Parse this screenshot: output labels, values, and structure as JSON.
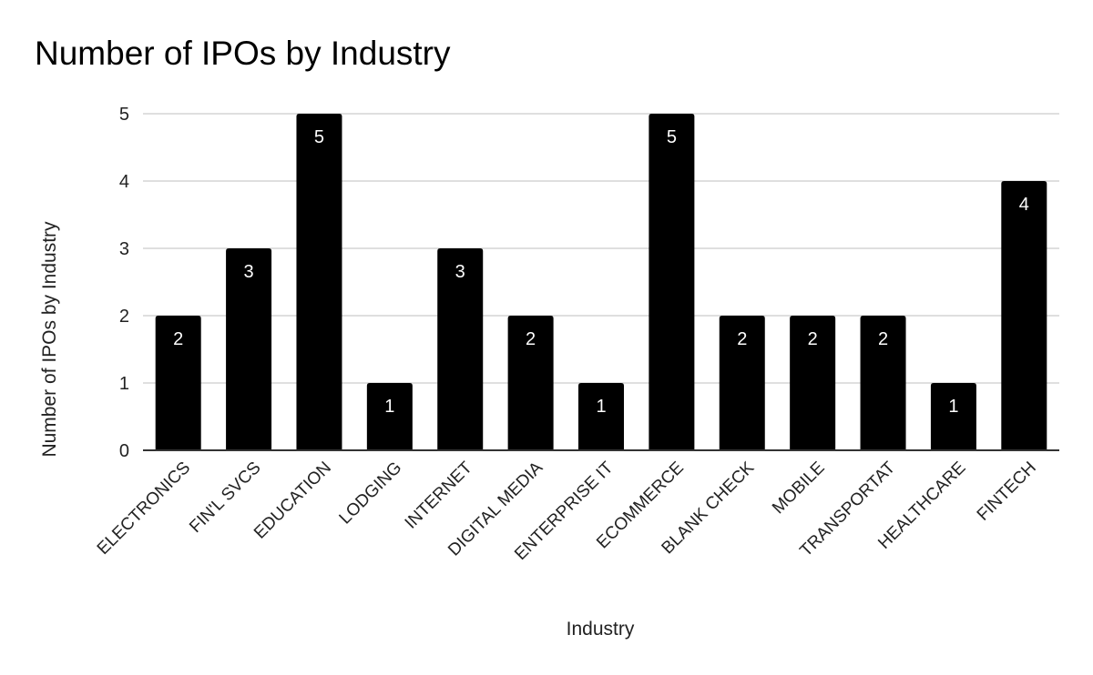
{
  "chart_data": {
    "type": "bar",
    "title": "Number of IPOs by Industry",
    "xlabel": "Industry",
    "ylabel": "Number of IPOs by Industry",
    "categories": [
      "ELECTRONICS",
      "FIN'L SVCS",
      "EDUCATION",
      "LODGING",
      "INTERNET",
      "DIGITAL MEDIA",
      "ENTERPRISE IT",
      "ECOMMERCE",
      "BLANK CHECK",
      "MOBILE",
      "TRANSPORTAT",
      "HEALTHCARE",
      "FINTECH"
    ],
    "values": [
      2,
      3,
      5,
      1,
      3,
      2,
      1,
      5,
      2,
      2,
      2,
      1,
      4
    ],
    "ylim": [
      0,
      5
    ],
    "yticks": [
      0,
      1,
      2,
      3,
      4,
      5
    ],
    "data_labels": true,
    "grid": true,
    "legend": "none",
    "colors": {
      "bar": "#000000",
      "data_label": "#ffffff",
      "grid": "#cccccc",
      "axis": "#333333"
    }
  }
}
